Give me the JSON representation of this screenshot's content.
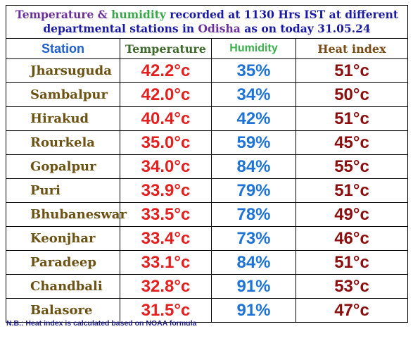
{
  "title": {
    "part1": "Temperature",
    "amp": " & ",
    "part2": "humidity",
    "part3": " recorded at 1130 Hrs IST at different departmental stations in ",
    "place": "Odisha",
    "part4": " as on today 31.05.24"
  },
  "headers": {
    "station": "Station",
    "temperature": "Temperature",
    "humidity": "Humidity",
    "heat_index": "Heat index"
  },
  "rows": [
    {
      "station": "Jharsuguda",
      "temperature": "42.2°c",
      "humidity": "35%",
      "heat_index": "51°c"
    },
    {
      "station": "Sambalpur",
      "temperature": "42.0°c",
      "humidity": "34%",
      "heat_index": "50°c"
    },
    {
      "station": "Hirakud",
      "temperature": "40.4°c",
      "humidity": "42%",
      "heat_index": "51°c"
    },
    {
      "station": "Rourkela",
      "temperature": "35.0°c",
      "humidity": "59%",
      "heat_index": "45°c"
    },
    {
      "station": "Gopalpur",
      "temperature": "34.0°c",
      "humidity": "84%",
      "heat_index": "55°c"
    },
    {
      "station": "Puri",
      "temperature": "33.9°c",
      "humidity": "79%",
      "heat_index": "51°c"
    },
    {
      "station": "Bhubaneswar",
      "temperature": "33.5°c",
      "humidity": "78%",
      "heat_index": "49°c"
    },
    {
      "station": "Keonjhar",
      "temperature": "33.4°c",
      "humidity": "73%",
      "heat_index": "46°c"
    },
    {
      "station": "Paradeep",
      "temperature": "33.1°c",
      "humidity": "84%",
      "heat_index": "51°c"
    },
    {
      "station": "Chandbali",
      "temperature": "32.8°c",
      "humidity": "91%",
      "heat_index": "53°c"
    },
    {
      "station": "Balasore",
      "temperature": "31.5°c",
      "humidity": "91%",
      "heat_index": "47°c"
    }
  ],
  "footnote": "N.B.: Heat index is calculated based on NOAA formula",
  "colors": {
    "temperature": "#e51e1e",
    "humidity": "#1d73d8",
    "heat_index": "#8b0d0d",
    "station": "#6b5112"
  }
}
